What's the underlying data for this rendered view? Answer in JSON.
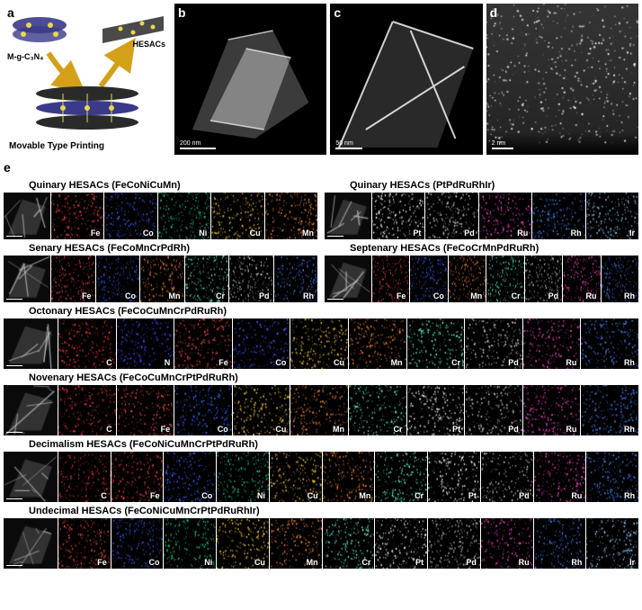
{
  "panel_a": {
    "label": "a",
    "top_left_label": "M-g-C₃N₄",
    "top_right_label": "HESACs",
    "bottom_label": "Movable Type Printing",
    "arrow_color": "#d4a017",
    "atom_colors": {
      "c": "#2a2a2a",
      "n": "#3a3a8a",
      "m": "#e8d84a"
    }
  },
  "panel_b": {
    "label": "b",
    "scale_text": "200 nm",
    "scale_w": 40
  },
  "panel_c": {
    "label": "c",
    "scale_text": "50 nm",
    "scale_w": 30
  },
  "panel_d": {
    "label": "d",
    "scale_text": "2 nm",
    "scale_w": 24
  },
  "panel_e_label": "e",
  "element_colors": {
    "C": "#ff3333",
    "N": "#4444ff",
    "Fe": "#ff4444",
    "Co": "#3366ff",
    "Ni": "#22cc88",
    "Cu": "#ffcc33",
    "Mn": "#ff8833",
    "Cr": "#66ffcc",
    "Pt": "#ffffff",
    "Pd": "#cccccc",
    "Ru": "#ff44cc",
    "Rh": "#4488ff",
    "Ir": "#88ccff"
  },
  "rows": [
    {
      "pair": [
        {
          "title": "Quinary HESACs (FeCoNiCuMn)",
          "elements": [
            "Fe",
            "Co",
            "Ni",
            "Cu",
            "Mn"
          ],
          "haadf_w": 52
        },
        {
          "title": "Quinary HESACs (PtPdRuRhIr)",
          "elements": [
            "Pt",
            "Pd",
            "Ru",
            "Rh",
            "Ir"
          ],
          "haadf_w": 52
        }
      ]
    },
    {
      "pair": [
        {
          "title": "Senary HESACs (FeCoMnCrPdRh)",
          "elements": [
            "Fe",
            "Co",
            "Mn",
            "Cr",
            "Pd",
            "Rh"
          ],
          "haadf_w": 52
        },
        {
          "title": "Septenary HESACs (FeCoCrMnPdRuRh)",
          "elements": [
            "Fe",
            "Co",
            "Mn",
            "Cr",
            "Pd",
            "Ru",
            "Rh"
          ],
          "haadf_w": 52
        }
      ]
    },
    {
      "full": {
        "title": "Octonary HESACs (FeCoCuMnCrPdRuRh)",
        "elements": [
          "C",
          "N",
          "Fe",
          "Co",
          "Cu",
          "Mn",
          "Cr",
          "Pd",
          "Ru",
          "Rh"
        ],
        "haadf_w": 60
      }
    },
    {
      "full": {
        "title": "Novenary HESACs (FeCoCuMnCrPtPdRuRh)",
        "elements": [
          "C",
          "Fe",
          "Co",
          "Cu",
          "Mn",
          "Cr",
          "Pt",
          "Pd",
          "Ru",
          "Rh"
        ],
        "haadf_w": 60
      }
    },
    {
      "full": {
        "title": "Decimalism HESACs (FeCoNiCuMnCrPtPdRuRh)",
        "elements": [
          "C",
          "Fe",
          "Co",
          "Ni",
          "Cu",
          "Mn",
          "Cr",
          "Pt",
          "Pd",
          "Ru",
          "Rh"
        ],
        "haadf_w": 60
      }
    },
    {
      "full": {
        "title": "Undecimal HESACs (FeCoNiCuMnCrPtPdRuRhIr)",
        "elements": [
          "Fe",
          "Co",
          "Ni",
          "Cu",
          "Mn",
          "Cr",
          "Pt",
          "Pd",
          "Ru",
          "Rh",
          "Ir"
        ],
        "haadf_w": 60
      }
    }
  ],
  "haadf_bg": "#1a1a1a",
  "dot_density": 220
}
